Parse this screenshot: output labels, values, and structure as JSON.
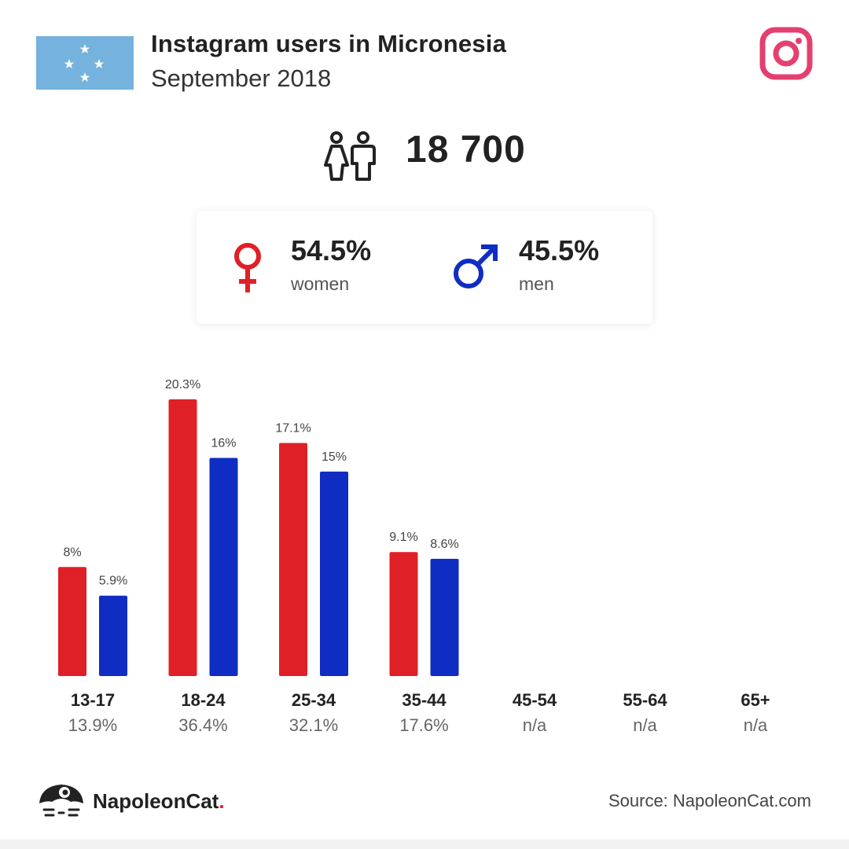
{
  "header": {
    "title": "Instagram users in Micronesia",
    "subtitle": "September 2018",
    "flag_icon": "micronesia-flag-icon",
    "logo_icon": "instagram-logo-icon"
  },
  "total": {
    "icon": "people-icon",
    "value": "18 700"
  },
  "gender": {
    "women": {
      "percent": "54.5%",
      "label": "women",
      "icon": "female-symbol-icon",
      "color": "#e02027"
    },
    "men": {
      "percent": "45.5%",
      "label": "men",
      "icon": "male-symbol-icon",
      "color": "#0f2dc2"
    }
  },
  "chart_data": {
    "type": "bar",
    "categories": [
      "13-17",
      "18-24",
      "25-34",
      "35-44",
      "45-54",
      "55-64",
      "65+"
    ],
    "category_shares": [
      "13.9%",
      "36.4%",
      "32.1%",
      "17.6%",
      "n/a",
      "n/a",
      "n/a"
    ],
    "series": [
      {
        "name": "women",
        "color": "#e02027",
        "values": [
          8,
          20.3,
          17.1,
          9.1,
          null,
          null,
          null
        ],
        "labels": [
          "8%",
          "20.3%",
          "17.1%",
          "9.1%",
          "",
          "",
          ""
        ]
      },
      {
        "name": "men",
        "color": "#0f2dc2",
        "values": [
          5.9,
          16,
          15,
          8.6,
          null,
          null,
          null
        ],
        "labels": [
          "5.9%",
          "16%",
          "15%",
          "8.6%",
          "",
          "",
          ""
        ]
      }
    ],
    "title": "",
    "xlabel": "",
    "ylabel": "",
    "ylim": [
      0,
      20.3
    ],
    "grid": false,
    "legend": "none"
  },
  "footer": {
    "brand": "NapoleonCat",
    "brand_dot": ".",
    "brand_icon": "napoleoncat-logo-icon",
    "source": "Source: NapoleonCat.com"
  }
}
